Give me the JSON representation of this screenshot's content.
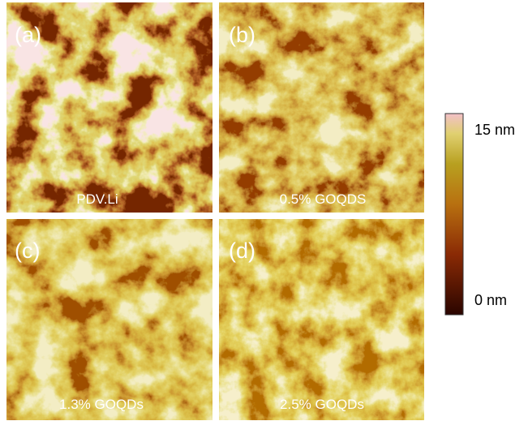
{
  "panels": [
    {
      "label": "(a)",
      "caption": "PDV.Li"
    },
    {
      "label": "(b)",
      "caption": "0.5% GOQDS"
    },
    {
      "label": "(c)",
      "caption": "1.3% GOQDs"
    },
    {
      "label": "(d)",
      "caption": "2.5% GOQDs"
    }
  ],
  "colorbar": {
    "max_label": "15 nm",
    "min_label": "0 nm"
  }
}
